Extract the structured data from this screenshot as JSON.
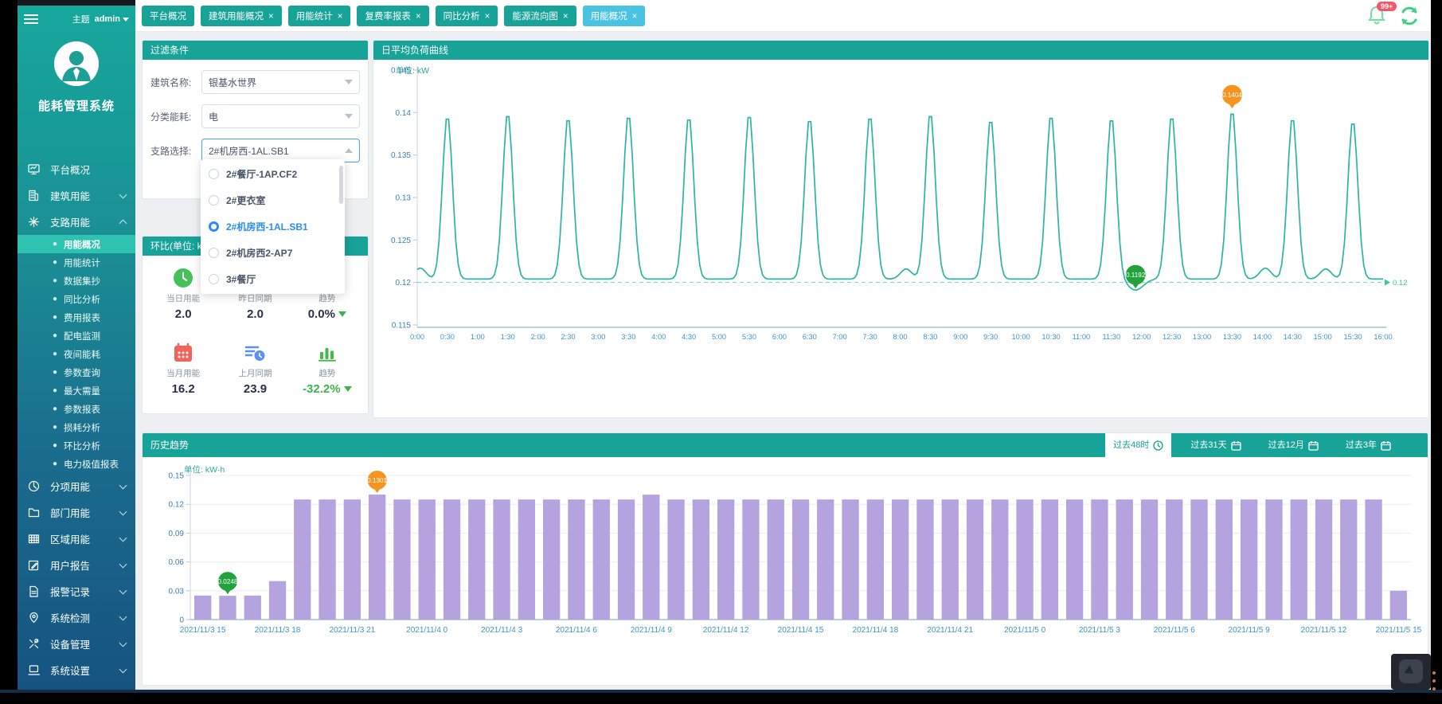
{
  "colors": {
    "teal": "#17a398",
    "active_tab": "#4ac3e3",
    "line": "#2bb3a3",
    "bar": "#b4a3de",
    "marker_orange": "#f7941e",
    "marker_green": "#21a23c",
    "badge_red": "#f3566a",
    "sidebar_active": "#2ec3b1",
    "axis_y_label": "#3a7fb5",
    "axis_x_label": "#3e94c9",
    "dashed_line": "#35c2b2"
  },
  "sidebar": {
    "theme_label": "主题",
    "user": "admin",
    "app_title": "能耗管理系统",
    "menu": [
      {
        "label": "平台概况",
        "icon": "monitor",
        "expandable": false
      },
      {
        "label": "建筑用能",
        "icon": "building",
        "expandable": true,
        "expanded": false
      },
      {
        "label": "支路用能",
        "icon": "branch",
        "expandable": true,
        "expanded": true,
        "children": [
          "用能概况",
          "用能统计",
          "数据集抄",
          "同比分析",
          "费用报表",
          "配电监测",
          "夜间能耗",
          "参数查询",
          "最大需量",
          "参数报表",
          "损耗分析",
          "环比分析",
          "电力极值报表"
        ],
        "active_child": "用能概况"
      },
      {
        "label": "分项用能",
        "icon": "pie",
        "expandable": true,
        "expanded": false
      },
      {
        "label": "部门用能",
        "icon": "folder",
        "expandable": true,
        "expanded": false
      },
      {
        "label": "区域用能",
        "icon": "grid",
        "expandable": true,
        "expanded": false
      },
      {
        "label": "用户报告",
        "icon": "edit",
        "expandable": true,
        "expanded": false
      },
      {
        "label": "报警记录",
        "icon": "doc",
        "expandable": true,
        "expanded": false
      },
      {
        "label": "系统检测",
        "icon": "pin",
        "expandable": true,
        "expanded": false
      },
      {
        "label": "设备管理",
        "icon": "tools",
        "expandable": true,
        "expanded": false
      },
      {
        "label": "系统设置",
        "icon": "laptop",
        "expandable": true,
        "expanded": false
      }
    ]
  },
  "topbar": {
    "tabs": [
      {
        "label": "平台概况",
        "closable": false,
        "active": false
      },
      {
        "label": "建筑用能概况",
        "closable": true,
        "active": false
      },
      {
        "label": "用能统计",
        "closable": true,
        "active": false
      },
      {
        "label": "复费率报表",
        "closable": true,
        "active": false
      },
      {
        "label": "同比分析",
        "closable": true,
        "active": false
      },
      {
        "label": "能源流向图",
        "closable": true,
        "active": false
      },
      {
        "label": "用能概况",
        "closable": true,
        "active": true
      }
    ],
    "notification_badge": "99+"
  },
  "filter": {
    "title": "过滤条件",
    "fields": [
      {
        "label": "建筑名称:",
        "value": "银基水世界",
        "state": "normal"
      },
      {
        "label": "分类能耗:",
        "value": "电",
        "state": "normal"
      },
      {
        "label": "支路选择:",
        "value": "2#机房西-1AL.SB1",
        "state": "open"
      }
    ],
    "dropdown_options": [
      {
        "label": "2#餐厅-1AP.CF2",
        "selected": false
      },
      {
        "label": "2#更衣室",
        "selected": false
      },
      {
        "label": "2#机房西-1AL.SB1",
        "selected": true
      },
      {
        "label": "2#机房西2-AP7",
        "selected": false
      },
      {
        "label": "3#餐厅",
        "selected": false
      }
    ]
  },
  "huanbi": {
    "title": "环比(单位: kWh)",
    "stats": [
      {
        "label": "当日用能",
        "value": "2.0",
        "icon": "clock-green",
        "value_color": "dark",
        "arrow": false
      },
      {
        "label": "昨日同期",
        "value": "2.0",
        "icon": "clipboard-blue",
        "value_color": "dark",
        "arrow": false
      },
      {
        "label": "趋势",
        "value": "0.0%",
        "icon": "chart-green",
        "value_color": "dark",
        "arrow": true
      },
      {
        "label": "当月用能",
        "value": "16.2",
        "icon": "calendar-red",
        "value_color": "dark",
        "arrow": false
      },
      {
        "label": "上月同期",
        "value": "23.9",
        "icon": "clipboard-blue",
        "value_color": "dark",
        "arrow": false
      },
      {
        "label": "趋势",
        "value": "-32.2%",
        "icon": "chart-green",
        "value_color": "green",
        "arrow": true
      }
    ]
  },
  "history": {
    "title": "历史趋势",
    "range_buttons": [
      {
        "label": "过去48时",
        "icon": "clock",
        "active": true
      },
      {
        "label": "过去31天",
        "icon": "calendar",
        "active": false
      },
      {
        "label": "过去12月",
        "icon": "calendar",
        "active": false
      },
      {
        "label": "过去3年",
        "icon": "calendar",
        "active": false
      }
    ]
  },
  "chart_data": [
    {
      "id": "daily-load-curve",
      "type": "line",
      "title": "日平均负荷曲线",
      "unit_label": "单位: kW",
      "ylim": [
        0.115,
        0.145
      ],
      "yticks": [
        0.115,
        0.12,
        0.125,
        0.13,
        0.135,
        0.14,
        0.145
      ],
      "x_tick_labels": [
        "0:00",
        "0:30",
        "1:00",
        "1:30",
        "2:00",
        "2:30",
        "3:00",
        "3:30",
        "4:00",
        "4:30",
        "5:00",
        "5:30",
        "6:00",
        "6:30",
        "7:00",
        "7:30",
        "8:00",
        "8:30",
        "9:00",
        "9:30",
        "10:00",
        "10:30",
        "11:00",
        "11:30",
        "12:00",
        "12:30",
        "13:00",
        "13:30",
        "14:00",
        "14:30",
        "15:00",
        "15:30",
        "16:00"
      ],
      "points": [
        0.121,
        0.1398,
        0.1205,
        0.1401,
        0.1205,
        0.1396,
        0.1204,
        0.1399,
        0.1204,
        0.1397,
        0.1205,
        0.14,
        0.1204,
        0.1395,
        0.1204,
        0.1398,
        0.1216,
        0.1401,
        0.1204,
        0.1394,
        0.1204,
        0.1399,
        0.1204,
        0.1396,
        0.1192,
        0.1398,
        0.1204,
        0.1404,
        0.1215,
        0.1396,
        0.1214,
        0.1392,
        0.1205
      ],
      "baseline": 0.12,
      "baseline_label": "0.12",
      "max_marker": {
        "hour": 13.5,
        "value": 0.1404,
        "label": "0.1404"
      },
      "min_marker": {
        "hour": 11.9,
        "value": 0.1192,
        "label": "0.1192"
      },
      "render": {
        "valley": 0.1204,
        "peaks": [
          {
            "h": 0.5,
            "v": 0.1398
          },
          {
            "h": 1.5,
            "v": 0.1401
          },
          {
            "h": 2.5,
            "v": 0.1396
          },
          {
            "h": 3.5,
            "v": 0.1399
          },
          {
            "h": 4.5,
            "v": 0.1397
          },
          {
            "h": 5.5,
            "v": 0.14
          },
          {
            "h": 6.5,
            "v": 0.1395
          },
          {
            "h": 7.5,
            "v": 0.1398
          },
          {
            "h": 8.5,
            "v": 0.1401
          },
          {
            "h": 9.5,
            "v": 0.1394
          },
          {
            "h": 10.5,
            "v": 0.1399
          },
          {
            "h": 11.5,
            "v": 0.1396
          },
          {
            "h": 12.5,
            "v": 0.1398
          },
          {
            "h": 13.5,
            "v": 0.1404
          },
          {
            "h": 14.5,
            "v": 0.1396
          },
          {
            "h": 15.5,
            "v": 0.1392
          }
        ],
        "bumps": [
          {
            "h": 0.05,
            "amp": 0.0013
          },
          {
            "h": 8.1,
            "amp": 0.0012
          },
          {
            "h": 14.05,
            "amp": 0.0013
          },
          {
            "h": 15.05,
            "amp": 0.0012
          }
        ],
        "dip": {
          "h": 11.9,
          "depth": 0.0013
        }
      }
    },
    {
      "id": "history-trend",
      "type": "bar",
      "title": "历史趋势",
      "unit_label": "单位: kW·h",
      "ylim": [
        0,
        0.15
      ],
      "yticks": [
        0,
        0.03,
        0.06,
        0.09,
        0.12,
        0.15
      ],
      "tick_every": 3,
      "tick_labels": [
        "2021/11/3 15",
        "2021/11/3 18",
        "2021/11/3 21",
        "2021/11/4 0",
        "2021/11/4 3",
        "2021/11/4 6",
        "2021/11/4 9",
        "2021/11/4 12",
        "2021/11/4 15",
        "2021/11/4 18",
        "2021/11/4 21",
        "2021/11/5 0",
        "2021/11/5 3",
        "2021/11/5 6",
        "2021/11/5 9",
        "2021/11/5 12",
        "2021/11/5 15"
      ],
      "values": [
        0.025,
        0.0248,
        0.025,
        0.04,
        0.125,
        0.125,
        0.125,
        0.1301,
        0.125,
        0.125,
        0.125,
        0.125,
        0.125,
        0.125,
        0.125,
        0.125,
        0.125,
        0.125,
        0.13,
        0.125,
        0.125,
        0.125,
        0.125,
        0.125,
        0.125,
        0.125,
        0.125,
        0.125,
        0.125,
        0.125,
        0.125,
        0.125,
        0.125,
        0.125,
        0.125,
        0.125,
        0.125,
        0.125,
        0.125,
        0.125,
        0.125,
        0.125,
        0.125,
        0.125,
        0.125,
        0.125,
        0.125,
        0.125,
        0.03
      ],
      "max_marker": {
        "index": 7,
        "label": "0.1301"
      },
      "min_marker": {
        "index": 1,
        "label": "0.0248"
      }
    }
  ]
}
